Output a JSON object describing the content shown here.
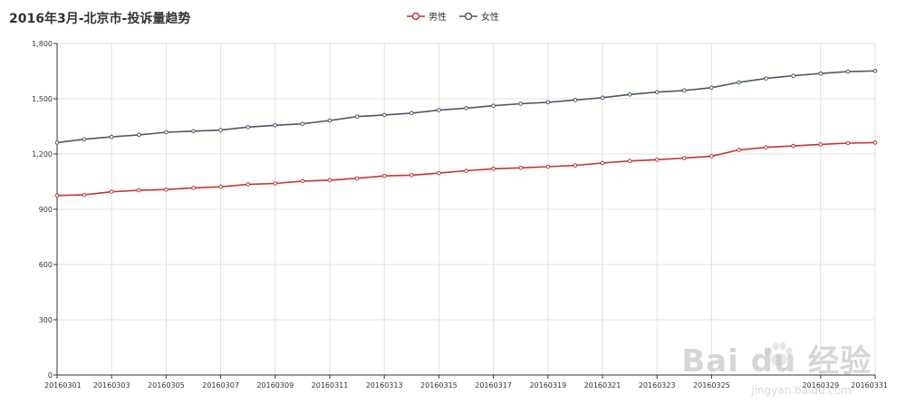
{
  "chart_data": {
    "type": "line",
    "title": "2016年3月-北京市-投诉量趋势",
    "x": [
      "20160301",
      "20160302",
      "20160303",
      "20160304",
      "20160305",
      "20160306",
      "20160307",
      "20160308",
      "20160309",
      "20160310",
      "20160311",
      "20160312",
      "20160313",
      "20160314",
      "20160315",
      "20160316",
      "20160317",
      "20160318",
      "20160319",
      "20160320",
      "20160321",
      "20160322",
      "20160323",
      "20160324",
      "20160325",
      "20160326",
      "20160327",
      "20160328",
      "20160329",
      "20160330",
      "20160331"
    ],
    "x_tick_labels": [
      "20160301",
      "20160303",
      "20160305",
      "20160307",
      "20160309",
      "20160311",
      "20160313",
      "20160315",
      "20160317",
      "20160319",
      "20160321",
      "20160323",
      "20160325",
      "20160329",
      "20160331"
    ],
    "ylim": [
      0,
      1800
    ],
    "y_ticks": [
      "0",
      "300",
      "600",
      "900",
      "1,200",
      "1,500",
      "1,800"
    ],
    "y_tick_values": [
      0,
      300,
      600,
      900,
      1200,
      1500,
      1800
    ],
    "grid": true,
    "legend_position": "top-center",
    "series": [
      {
        "name": "男性",
        "color": "#c23531",
        "values": [
          975,
          978,
          995,
          1003,
          1007,
          1016,
          1022,
          1035,
          1040,
          1053,
          1058,
          1068,
          1081,
          1085,
          1096,
          1109,
          1120,
          1125,
          1131,
          1138,
          1151,
          1162,
          1169,
          1178,
          1188,
          1222,
          1236,
          1244,
          1252,
          1259,
          1262
        ]
      },
      {
        "name": "女性",
        "color": "#4a5a6a",
        "values": [
          1262,
          1280,
          1293,
          1304,
          1318,
          1324,
          1330,
          1346,
          1356,
          1364,
          1382,
          1403,
          1412,
          1422,
          1438,
          1449,
          1462,
          1473,
          1481,
          1493,
          1506,
          1523,
          1536,
          1545,
          1560,
          1589,
          1610,
          1625,
          1637,
          1647,
          1651
        ]
      }
    ]
  },
  "watermark": {
    "brand": "Bai du 经验",
    "url": "jingyan.baidu.com"
  }
}
